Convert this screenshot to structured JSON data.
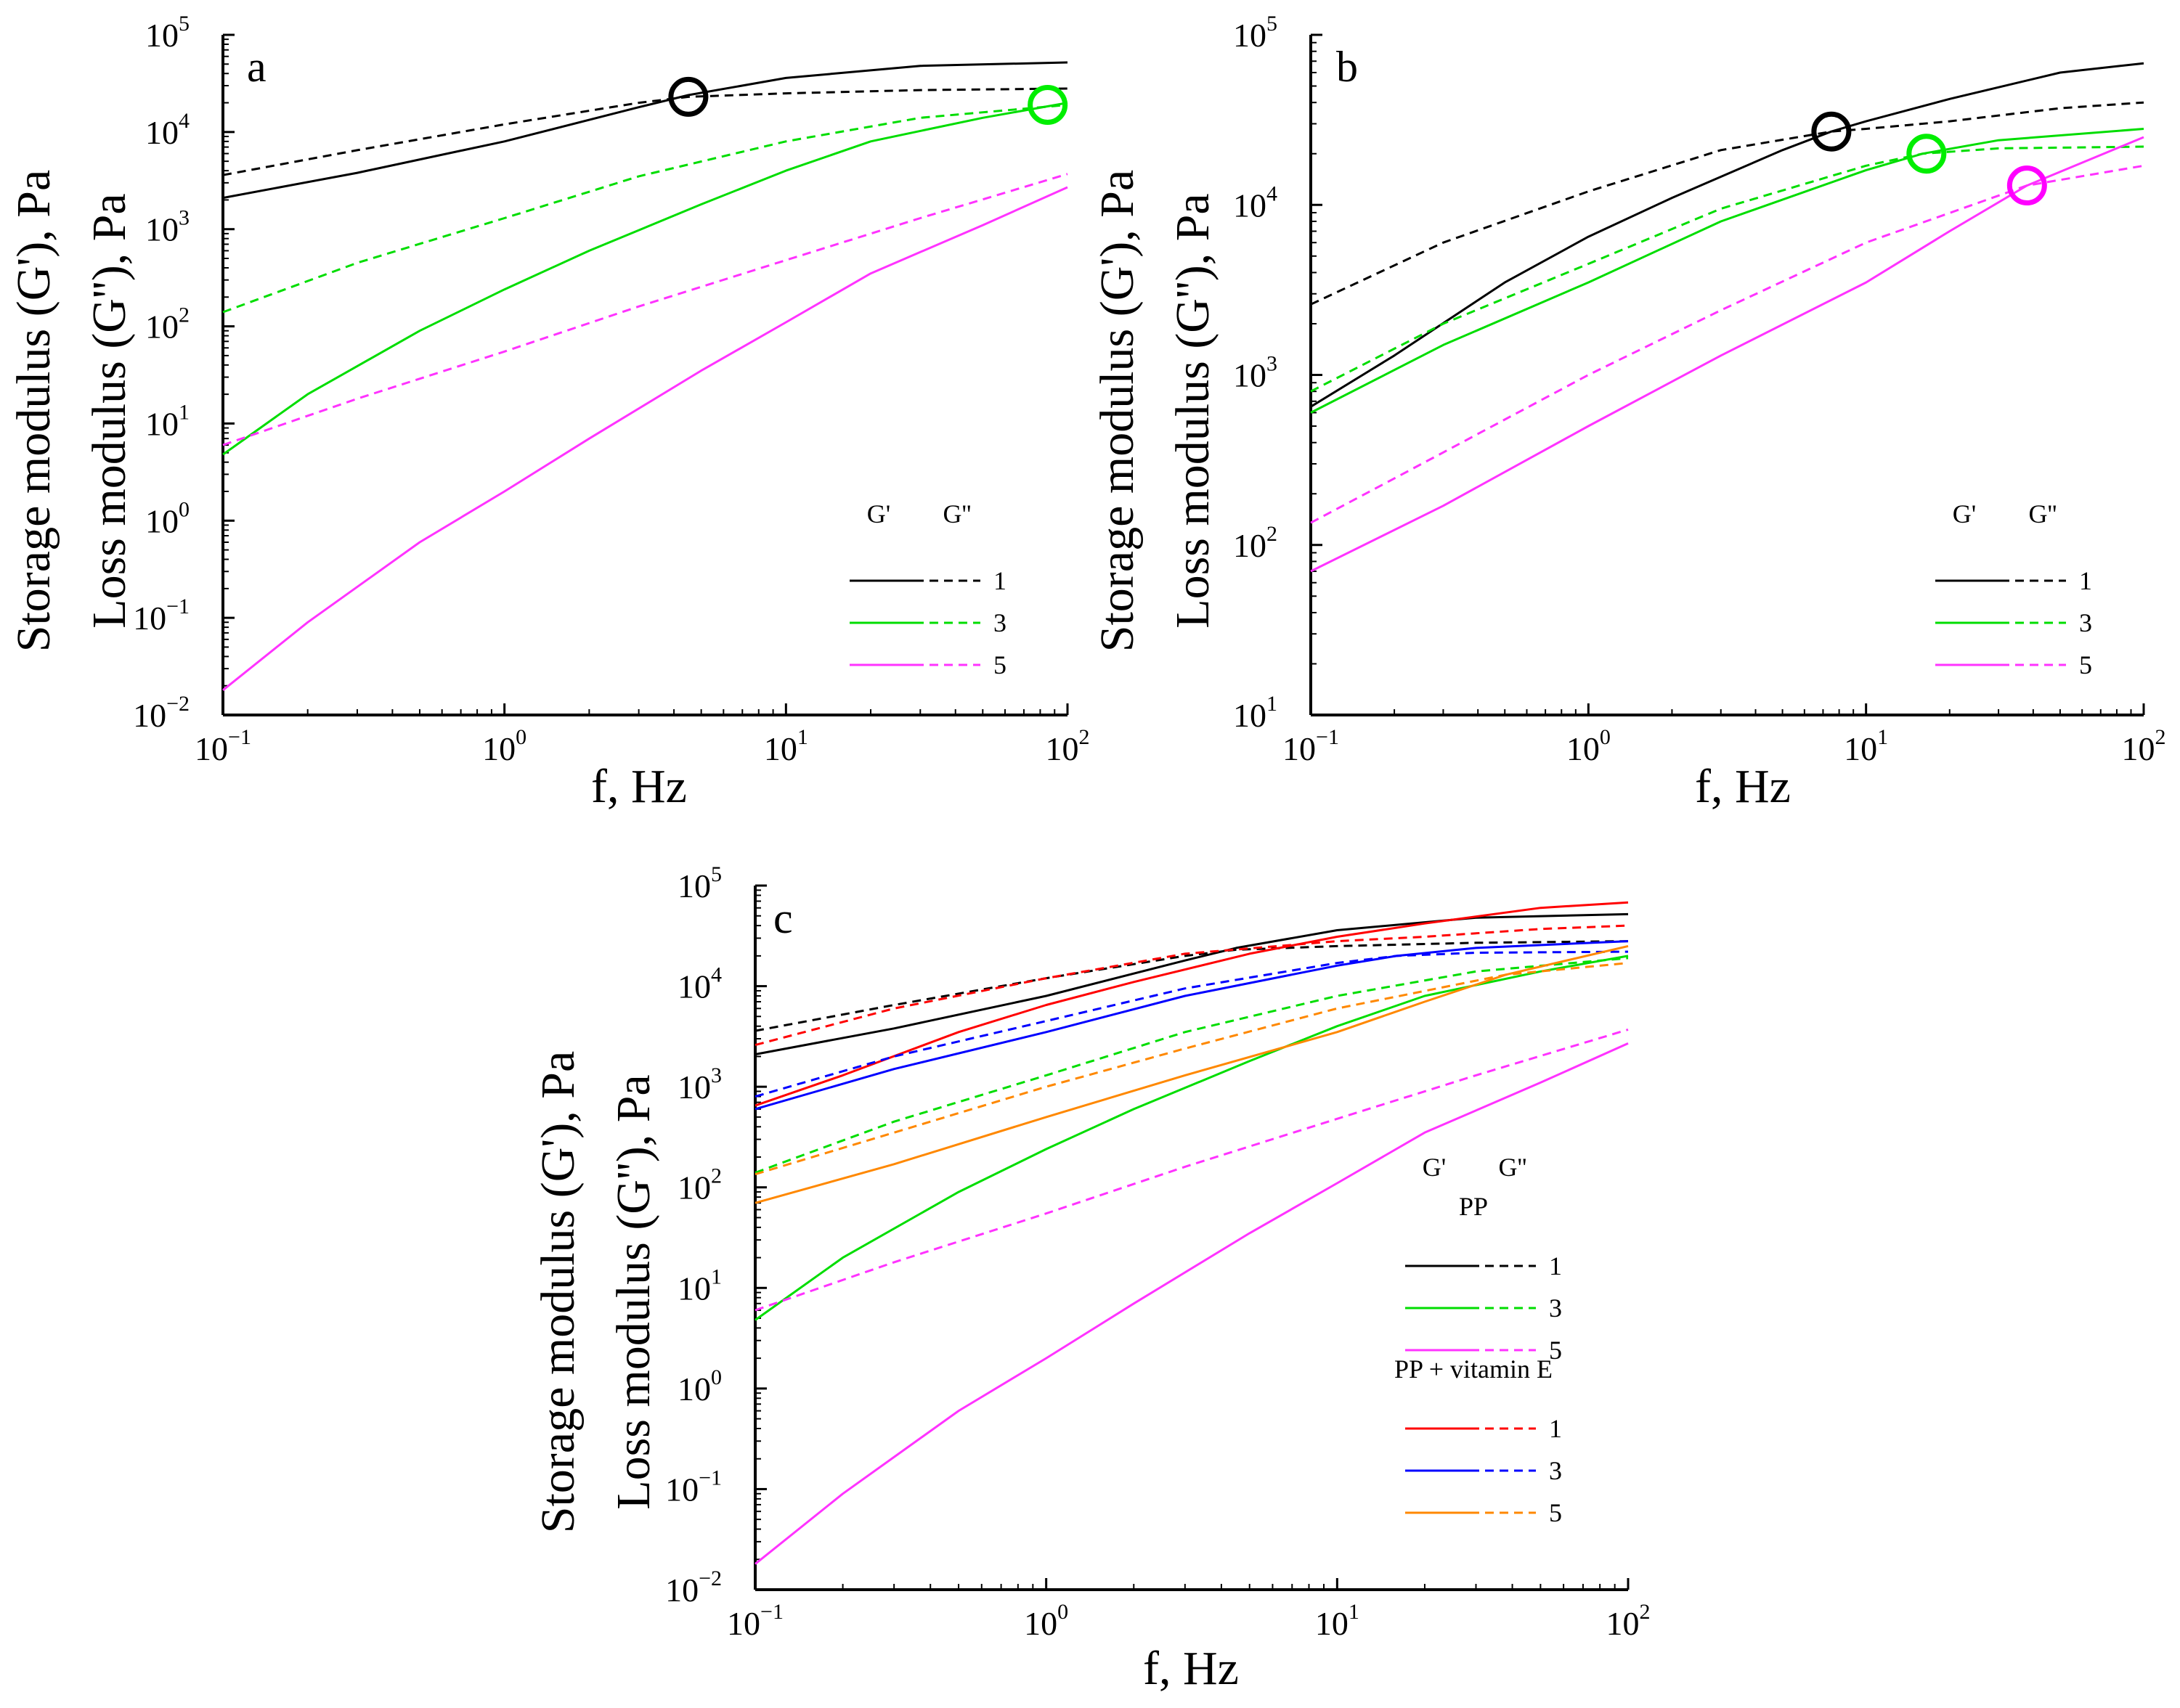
{
  "chart_data": [
    {
      "type": "line",
      "panel": "a",
      "xlabel": "f, Hz",
      "ylabel_line1": "Storage modulus (G'), Pa",
      "ylabel_line2": "Loss modulus (G''), Pa",
      "xscale": "log",
      "yscale": "log",
      "xlim": [
        0.1,
        100
      ],
      "ylim": [
        0.01,
        100000
      ],
      "x_ticks": [
        {
          "base": "10",
          "exp": "−1"
        },
        {
          "base": "10",
          "exp": "0"
        },
        {
          "base": "10",
          "exp": "1"
        },
        {
          "base": "10",
          "exp": "2"
        }
      ],
      "y_ticks": [
        {
          "base": "10",
          "exp": "−2"
        },
        {
          "base": "10",
          "exp": "−1"
        },
        {
          "base": "10",
          "exp": "0"
        },
        {
          "base": "10",
          "exp": "1"
        },
        {
          "base": "10",
          "exp": "2"
        },
        {
          "base": "10",
          "exp": "3"
        },
        {
          "base": "10",
          "exp": "4"
        },
        {
          "base": "10",
          "exp": "5"
        }
      ],
      "legend": {
        "position": "bottom-right",
        "head_solid": "G'",
        "head_dashed": "G''",
        "groups": [
          {
            "title": "",
            "entries": [
              {
                "label": "1",
                "color": "#000000"
              },
              {
                "label": "3",
                "color": "#00dd00"
              },
              {
                "label": "5",
                "color": "#ff33ff"
              }
            ]
          }
        ]
      },
      "series": [
        {
          "name": "G' 1",
          "color": "#000000",
          "dash": false,
          "x": [
            0.1,
            0.3,
            1,
            3,
            4.5,
            10,
            30,
            100
          ],
          "y": [
            2100,
            3800,
            8000,
            18000,
            24000,
            36000,
            48000,
            52000
          ]
        },
        {
          "name": "G'' 1",
          "color": "#000000",
          "dash": true,
          "x": [
            0.1,
            0.3,
            1,
            3,
            4.5,
            10,
            30,
            100
          ],
          "y": [
            3600,
            6500,
            12000,
            20000,
            23000,
            25000,
            27000,
            28000
          ]
        },
        {
          "name": "G' 3",
          "color": "#00dd00",
          "dash": false,
          "x": [
            0.1,
            0.2,
            0.5,
            1,
            2,
            5,
            10,
            20,
            50,
            100
          ],
          "y": [
            4.8,
            20,
            90,
            240,
            600,
            1800,
            4000,
            8000,
            14000,
            20000
          ]
        },
        {
          "name": "G'' 3",
          "color": "#00dd00",
          "dash": true,
          "x": [
            0.1,
            0.3,
            1,
            3,
            10,
            30,
            100
          ],
          "y": [
            140,
            450,
            1300,
            3500,
            8000,
            14000,
            19000
          ]
        },
        {
          "name": "G' 5",
          "color": "#ff33ff",
          "dash": false,
          "x": [
            0.1,
            0.2,
            0.5,
            1,
            2,
            5,
            10,
            20,
            50,
            100
          ],
          "y": [
            0.018,
            0.09,
            0.6,
            2,
            7,
            35,
            110,
            350,
            1100,
            2700
          ]
        },
        {
          "name": "G'' 5",
          "color": "#ff33ff",
          "dash": true,
          "x": [
            0.1,
            0.3,
            1,
            3,
            10,
            30,
            100
          ],
          "y": [
            6,
            18,
            55,
            160,
            480,
            1300,
            3700
          ]
        }
      ],
      "crossovers": [
        {
          "x": 4.5,
          "y": 23000,
          "color": "#000000"
        },
        {
          "x": 85,
          "y": 19000,
          "color": "#00ee00"
        }
      ]
    },
    {
      "type": "line",
      "panel": "b",
      "xlabel": "f, Hz",
      "ylabel_line1": "Storage modulus (G'), Pa",
      "ylabel_line2": "Loss modulus (G''), Pa",
      "xscale": "log",
      "yscale": "log",
      "xlim": [
        0.1,
        100
      ],
      "ylim": [
        10,
        100000
      ],
      "x_ticks": [
        {
          "base": "10",
          "exp": "−1"
        },
        {
          "base": "10",
          "exp": "0"
        },
        {
          "base": "10",
          "exp": "1"
        },
        {
          "base": "10",
          "exp": "2"
        }
      ],
      "y_ticks": [
        {
          "base": "10",
          "exp": "1"
        },
        {
          "base": "10",
          "exp": "2"
        },
        {
          "base": "10",
          "exp": "3"
        },
        {
          "base": "10",
          "exp": "4"
        },
        {
          "base": "10",
          "exp": "5"
        }
      ],
      "legend": {
        "position": "bottom-right",
        "head_solid": "G'",
        "head_dashed": "G''",
        "groups": [
          {
            "title": "",
            "entries": [
              {
                "label": "1",
                "color": "#000000"
              },
              {
                "label": "3",
                "color": "#00dd00"
              },
              {
                "label": "5",
                "color": "#ff33ff"
              }
            ]
          }
        ]
      },
      "series": [
        {
          "name": "G' 1",
          "color": "#000000",
          "dash": false,
          "x": [
            0.1,
            0.2,
            0.5,
            1,
            2,
            5,
            7.5,
            10,
            20,
            50,
            100
          ],
          "y": [
            650,
            1300,
            3500,
            6500,
            11000,
            21000,
            27000,
            31000,
            42000,
            60000,
            68000
          ]
        },
        {
          "name": "G'' 1",
          "color": "#000000",
          "dash": true,
          "x": [
            0.1,
            0.3,
            1,
            3,
            7.5,
            10,
            20,
            50,
            100
          ],
          "y": [
            2600,
            6000,
            12000,
            21000,
            27000,
            28000,
            31000,
            37000,
            40000
          ]
        },
        {
          "name": "G' 3",
          "color": "#00dd00",
          "dash": false,
          "x": [
            0.1,
            0.3,
            1,
            3,
            10,
            16,
            30,
            100
          ],
          "y": [
            600,
            1500,
            3500,
            8000,
            16000,
            20000,
            24000,
            28000
          ]
        },
        {
          "name": "G'' 3",
          "color": "#00dd00",
          "dash": true,
          "x": [
            0.1,
            0.3,
            1,
            3,
            10,
            16,
            30,
            100
          ],
          "y": [
            800,
            2000,
            4500,
            9500,
            17000,
            20000,
            21500,
            22000
          ]
        },
        {
          "name": "G' 5",
          "color": "#ff33ff",
          "dash": false,
          "x": [
            0.1,
            0.3,
            1,
            3,
            10,
            20,
            38,
            100
          ],
          "y": [
            70,
            170,
            500,
            1300,
            3500,
            7000,
            13000,
            25000
          ]
        },
        {
          "name": "G'' 5",
          "color": "#ff33ff",
          "dash": true,
          "x": [
            0.1,
            0.3,
            1,
            3,
            10,
            38,
            100
          ],
          "y": [
            135,
            350,
            1000,
            2400,
            6000,
            13000,
            17000
          ]
        }
      ],
      "crossovers": [
        {
          "x": 7.5,
          "y": 27000,
          "color": "#000000"
        },
        {
          "x": 16.5,
          "y": 20000,
          "color": "#00ee00"
        },
        {
          "x": 38,
          "y": 13000,
          "color": "#ff00ff"
        }
      ]
    },
    {
      "type": "line",
      "panel": "c",
      "xlabel": "f, Hz",
      "ylabel_line1": "Storage modulus (G'), Pa",
      "ylabel_line2": "Loss modulus (G''), Pa",
      "xscale": "log",
      "yscale": "log",
      "xlim": [
        0.1,
        100
      ],
      "ylim": [
        0.01,
        100000
      ],
      "x_ticks": [
        {
          "base": "10",
          "exp": "−1"
        },
        {
          "base": "10",
          "exp": "0"
        },
        {
          "base": "10",
          "exp": "1"
        },
        {
          "base": "10",
          "exp": "2"
        }
      ],
      "y_ticks": [
        {
          "base": "10",
          "exp": "−2"
        },
        {
          "base": "10",
          "exp": "−1"
        },
        {
          "base": "10",
          "exp": "0"
        },
        {
          "base": "10",
          "exp": "1"
        },
        {
          "base": "10",
          "exp": "2"
        },
        {
          "base": "10",
          "exp": "3"
        },
        {
          "base": "10",
          "exp": "4"
        },
        {
          "base": "10",
          "exp": "5"
        }
      ],
      "legend": {
        "position": "bottom-right",
        "head_solid": "G'",
        "head_dashed": "G''",
        "groups": [
          {
            "title": "PP",
            "entries": [
              {
                "label": "1",
                "color": "#000000"
              },
              {
                "label": "3",
                "color": "#00dd00"
              },
              {
                "label": "5",
                "color": "#ff33ff"
              }
            ]
          },
          {
            "title": "PP + vitamin E",
            "entries": [
              {
                "label": "1",
                "color": "#ff0000"
              },
              {
                "label": "3",
                "color": "#0000ff"
              },
              {
                "label": "5",
                "color": "#ff8800"
              }
            ]
          }
        ]
      },
      "series": [
        {
          "name": "PP G' 1",
          "color": "#000000",
          "dash": false,
          "x": [
            0.1,
            0.3,
            1,
            3,
            4.5,
            10,
            30,
            100
          ],
          "y": [
            2100,
            3800,
            8000,
            18000,
            24000,
            36000,
            48000,
            52000
          ]
        },
        {
          "name": "PP G'' 1",
          "color": "#000000",
          "dash": true,
          "x": [
            0.1,
            0.3,
            1,
            3,
            4.5,
            10,
            30,
            100
          ],
          "y": [
            3600,
            6500,
            12000,
            20000,
            23000,
            25000,
            27000,
            28000
          ]
        },
        {
          "name": "PP G' 3",
          "color": "#00dd00",
          "dash": false,
          "x": [
            0.1,
            0.2,
            0.5,
            1,
            2,
            5,
            10,
            20,
            50,
            100
          ],
          "y": [
            4.8,
            20,
            90,
            240,
            600,
            1800,
            4000,
            8000,
            14000,
            20000
          ]
        },
        {
          "name": "PP G'' 3",
          "color": "#00dd00",
          "dash": true,
          "x": [
            0.1,
            0.3,
            1,
            3,
            10,
            30,
            100
          ],
          "y": [
            140,
            450,
            1300,
            3500,
            8000,
            14000,
            19000
          ]
        },
        {
          "name": "PP G' 5",
          "color": "#ff33ff",
          "dash": false,
          "x": [
            0.1,
            0.2,
            0.5,
            1,
            2,
            5,
            10,
            20,
            50,
            100
          ],
          "y": [
            0.018,
            0.09,
            0.6,
            2,
            7,
            35,
            110,
            350,
            1100,
            2700
          ]
        },
        {
          "name": "PP G'' 5",
          "color": "#ff33ff",
          "dash": true,
          "x": [
            0.1,
            0.3,
            1,
            3,
            10,
            30,
            100
          ],
          "y": [
            6,
            18,
            55,
            160,
            480,
            1300,
            3700
          ]
        },
        {
          "name": "PP + vitamin E G' 1",
          "color": "#ff0000",
          "dash": false,
          "x": [
            0.1,
            0.2,
            0.5,
            1,
            2,
            5,
            10,
            20,
            50,
            100
          ],
          "y": [
            650,
            1300,
            3500,
            6500,
            11000,
            21000,
            31000,
            42000,
            60000,
            68000
          ]
        },
        {
          "name": "PP + vitamin E G'' 1",
          "color": "#ff0000",
          "dash": true,
          "x": [
            0.1,
            0.3,
            1,
            3,
            10,
            20,
            50,
            100
          ],
          "y": [
            2600,
            6000,
            12000,
            21000,
            28000,
            31000,
            37000,
            40000
          ]
        },
        {
          "name": "PP + vitamin E G' 3",
          "color": "#0000ff",
          "dash": false,
          "x": [
            0.1,
            0.3,
            1,
            3,
            10,
            16,
            30,
            100
          ],
          "y": [
            600,
            1500,
            3500,
            8000,
            16000,
            20000,
            24000,
            28000
          ]
        },
        {
          "name": "PP + vitamin E G'' 3",
          "color": "#0000ff",
          "dash": true,
          "x": [
            0.1,
            0.3,
            1,
            3,
            10,
            16,
            30,
            100
          ],
          "y": [
            800,
            2000,
            4500,
            9500,
            17000,
            20000,
            21500,
            22000
          ]
        },
        {
          "name": "PP + vitamin E G' 5",
          "color": "#ff8800",
          "dash": false,
          "x": [
            0.1,
            0.3,
            1,
            3,
            10,
            20,
            38,
            100
          ],
          "y": [
            70,
            170,
            500,
            1300,
            3500,
            7000,
            13000,
            25000
          ]
        },
        {
          "name": "PP + vitamin E G'' 5",
          "color": "#ff8800",
          "dash": true,
          "x": [
            0.1,
            0.3,
            1,
            3,
            10,
            38,
            100
          ],
          "y": [
            135,
            350,
            1000,
            2400,
            6000,
            13000,
            17000
          ]
        }
      ],
      "crossovers": []
    }
  ]
}
